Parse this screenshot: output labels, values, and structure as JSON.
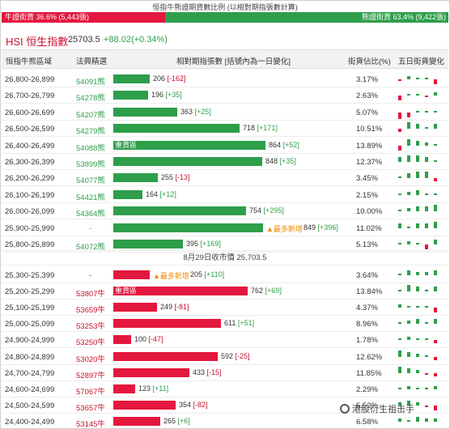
{
  "caption": "恒指牛熊證期貨數比例 (以相對期指張數計算)",
  "ratio": {
    "bull_label": "牛證街貨 36.6% (5,443張)",
    "bear_label": "熊證街貨 63.4% (9,422張)",
    "bull_fraction": 0.366,
    "bull_color": "#e4173e",
    "bear_color": "#2e9e4a"
  },
  "index": {
    "title": "HSI 恒生指數",
    "value": "25703.5",
    "change": "+88.02(+0.34%)"
  },
  "headers": {
    "range": "恒指牛熊區域",
    "code": "法興精選",
    "futures": "相對期指張數 [括號內為一日變化]",
    "share": "街貨佔比(%)",
    "five_day": "五日街貨變化"
  },
  "mid_label": "8月29日收市價 25,703.5",
  "heavy_label": "重貨區",
  "new_label": "▲最多新增",
  "bear_rows": [
    {
      "range": "26,800-26,899",
      "code": "54091熊",
      "count": 206,
      "value": "206",
      "delta": "[-162]",
      "share": "3.17%",
      "spark": [
        -1,
        2,
        1,
        1,
        -3
      ]
    },
    {
      "range": "26,700-26,799",
      "code": "54278熊",
      "count": 196,
      "value": "196",
      "delta": "[+35]",
      "share": "2.63%",
      "spark": [
        -3,
        1,
        1,
        -1,
        2
      ]
    },
    {
      "range": "26,600-26,699",
      "code": "54207熊",
      "count": 363,
      "value": "363",
      "delta": "[+25]",
      "share": "5.07%",
      "spark": [
        -4,
        -3,
        1,
        1,
        1
      ]
    },
    {
      "range": "26,500-26,599",
      "code": "54279熊",
      "count": 718,
      "value": "718",
      "delta": "[+171]",
      "share": "10.51%",
      "spark": [
        -2,
        4,
        3,
        1,
        3
      ]
    },
    {
      "range": "26,400-26,499",
      "code": "54088熊",
      "count": 864,
      "value": "864",
      "delta": "[+52]",
      "share": "13.89%",
      "spark": [
        -3,
        4,
        3,
        2,
        1
      ],
      "heavy": true
    },
    {
      "range": "26,300-26,399",
      "code": "53899熊",
      "count": 848,
      "value": "848",
      "delta": "[+35]",
      "share": "12.37%",
      "spark": [
        3,
        4,
        4,
        3,
        1
      ]
    },
    {
      "range": "26,200-26,299",
      "code": "54077熊",
      "count": 255,
      "value": "255",
      "delta": "[-13]",
      "share": "3.45%",
      "spark": [
        1,
        3,
        4,
        4,
        -2
      ]
    },
    {
      "range": "26,100-26,199",
      "code": "54421熊",
      "count": 164,
      "value": "164",
      "delta": "[+12]",
      "share": "2.15%",
      "spark": [
        1,
        2,
        3,
        1,
        1
      ]
    },
    {
      "range": "26,000-26,099",
      "code": "54364熊",
      "count": 754,
      "value": "754",
      "delta": "[+295]",
      "share": "10.00%",
      "spark": [
        1,
        2,
        3,
        3,
        4
      ]
    },
    {
      "range": "25,900-25,999",
      "code": "-",
      "count": 849,
      "value": "849",
      "delta": "[+396]",
      "share": "11.02%",
      "spark": [
        3,
        1,
        3,
        3,
        4
      ],
      "newest": true
    },
    {
      "range": "25,800-25,899",
      "code": "54072熊",
      "count": 395,
      "value": "395",
      "delta": "[+169]",
      "share": "5.13%",
      "spark": [
        1,
        2,
        1,
        -3,
        3
      ]
    }
  ],
  "bull_rows": [
    {
      "range": "25,300-25,399",
      "code": "-",
      "count": 205,
      "value": "205",
      "delta": "[+110]",
      "share": "3.64%",
      "spark": [
        1,
        3,
        2,
        2,
        3
      ],
      "newest": true
    },
    {
      "range": "25,200-25,299",
      "code": "53807牛",
      "count": 762,
      "value": "762",
      "delta": "[+69]",
      "share": "13.84%",
      "spark": [
        1,
        4,
        3,
        1,
        3
      ],
      "heavy": true
    },
    {
      "range": "25,100-25,199",
      "code": "53659牛",
      "count": 249,
      "value": "249",
      "delta": "[-81]",
      "share": "4.37%",
      "spark": [
        2,
        1,
        1,
        1,
        -3
      ]
    },
    {
      "range": "25,000-25,099",
      "code": "53253牛",
      "count": 611,
      "value": "611",
      "delta": "[+51]",
      "share": "8.96%",
      "spark": [
        1,
        2,
        3,
        1,
        3
      ]
    },
    {
      "range": "24,900-24,999",
      "code": "53250牛",
      "count": 100,
      "value": "100",
      "delta": "[-47]",
      "share": "1.78%",
      "spark": [
        1,
        2,
        1,
        1,
        -2
      ]
    },
    {
      "range": "24,800-24,899",
      "code": "53020牛",
      "count": 592,
      "value": "592",
      "delta": "[-25]",
      "share": "12.62%",
      "spark": [
        4,
        3,
        2,
        1,
        -2
      ]
    },
    {
      "range": "24,700-24,799",
      "code": "52897牛",
      "count": 433,
      "value": "433",
      "delta": "[-15]",
      "share": "11.85%",
      "spark": [
        4,
        3,
        2,
        -1,
        -2
      ]
    },
    {
      "range": "24,600-24,699",
      "code": "57067牛",
      "count": 123,
      "value": "123",
      "delta": "[+11]",
      "share": "2.29%",
      "spark": [
        1,
        2,
        1,
        1,
        2
      ]
    },
    {
      "range": "24,500-24,599",
      "code": "53657牛",
      "count": 354,
      "value": "354",
      "delta": "[-82]",
      "share": "5.52%",
      "spark": [
        2,
        3,
        2,
        -1,
        -3
      ]
    },
    {
      "range": "24,400-24,499",
      "code": "53145牛",
      "count": 265,
      "value": "265",
      "delta": "[+6]",
      "share": "6.58%",
      "spark": [
        2,
        1,
        3,
        2,
        2
      ]
    }
  ],
  "watermark": "港股衍生祖击手"
}
